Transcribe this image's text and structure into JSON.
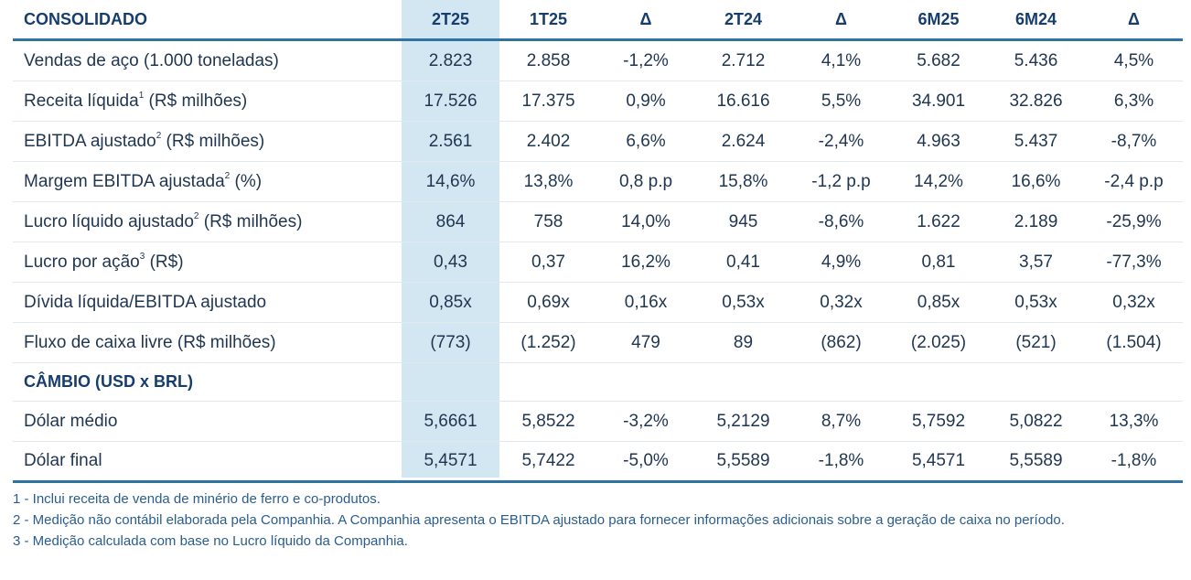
{
  "table": {
    "headers": [
      "CONSOLIDADO",
      "2T25",
      "1T25",
      "Δ",
      "2T24",
      "Δ",
      "6M25",
      "6M24",
      "Δ"
    ],
    "rows": [
      {
        "label": "Vendas de aço (1.000 toneladas)",
        "label_pre": "",
        "label_sup": "",
        "label_post": "",
        "values": [
          "2.823",
          "2.858",
          "-1,2%",
          "2.712",
          "4,1%",
          "5.682",
          "5.436",
          "4,5%"
        ]
      },
      {
        "label": "",
        "label_pre": "Receita líquida",
        "label_sup": "1",
        "label_post": " (R$ milhões)",
        "values": [
          "17.526",
          "17.375",
          "0,9%",
          "16.616",
          "5,5%",
          "34.901",
          "32.826",
          "6,3%"
        ]
      },
      {
        "label": "",
        "label_pre": "EBITDA ajustado",
        "label_sup": "2",
        "label_post": " (R$ milhões)",
        "values": [
          "2.561",
          "2.402",
          "6,6%",
          "2.624",
          "-2,4%",
          "4.963",
          "5.437",
          "-8,7%"
        ]
      },
      {
        "label": "",
        "label_pre": "Margem EBITDA ajustada",
        "label_sup": "2",
        "label_post": " (%)",
        "values": [
          "14,6%",
          "13,8%",
          "0,8 p.p",
          "15,8%",
          "-1,2 p.p",
          "14,2%",
          "16,6%",
          "-2,4 p.p"
        ]
      },
      {
        "label": "",
        "label_pre": "Lucro líquido ajustado",
        "label_sup": "2",
        "label_post": " (R$ milhões)",
        "values": [
          "864",
          "758",
          "14,0%",
          "945",
          "-8,6%",
          "1.622",
          "2.189",
          "-25,9%"
        ]
      },
      {
        "label": "",
        "label_pre": "Lucro por ação",
        "label_sup": "3",
        "label_post": " (R$)",
        "values": [
          "0,43",
          "0,37",
          "16,2%",
          "0,41",
          "4,9%",
          "0,81",
          "3,57",
          "-77,3%"
        ]
      },
      {
        "label": "Dívida líquida/EBITDA ajustado",
        "label_pre": "",
        "label_sup": "",
        "label_post": "",
        "values": [
          "0,85x",
          "0,69x",
          "0,16x",
          "0,53x",
          "0,32x",
          "0,85x",
          "0,53x",
          "0,32x"
        ]
      },
      {
        "label": "Fluxo de caixa livre (R$ milhões)",
        "label_pre": "",
        "label_sup": "",
        "label_post": "",
        "values": [
          "(773)",
          "(1.252)",
          "479",
          "89",
          "(862)",
          "(2.025)",
          "(521)",
          "(1.504)"
        ]
      }
    ],
    "section2_title": "CÂMBIO (USD x BRL)",
    "rows2": [
      {
        "label": "Dólar médio",
        "values": [
          "5,6661",
          "5,8522",
          "-3,2%",
          "5,2129",
          "8,7%",
          "5,7592",
          "5,0822",
          "13,3%"
        ]
      },
      {
        "label": "Dólar final",
        "values": [
          "5,4571",
          "5,7422",
          "-5,0%",
          "5,5589",
          "-1,8%",
          "5,4571",
          "5,5589",
          "-1,8%"
        ]
      }
    ]
  },
  "notes": [
    "1 - Inclui receita de venda de minério de ferro e co-produtos.",
    "2 - Medição não contábil elaborada pela Companhia. A Companhia apresenta o EBITDA ajustado para fornecer informações adicionais sobre a geração de caixa no período.",
    "3 - Medição calculada com base no Lucro líquido da Companhia."
  ],
  "colors": {
    "header_text": "#163d6e",
    "rule": "#2f73a3",
    "highlight_column": "#d3e7f3",
    "notes_text": "#2a5d8f"
  }
}
